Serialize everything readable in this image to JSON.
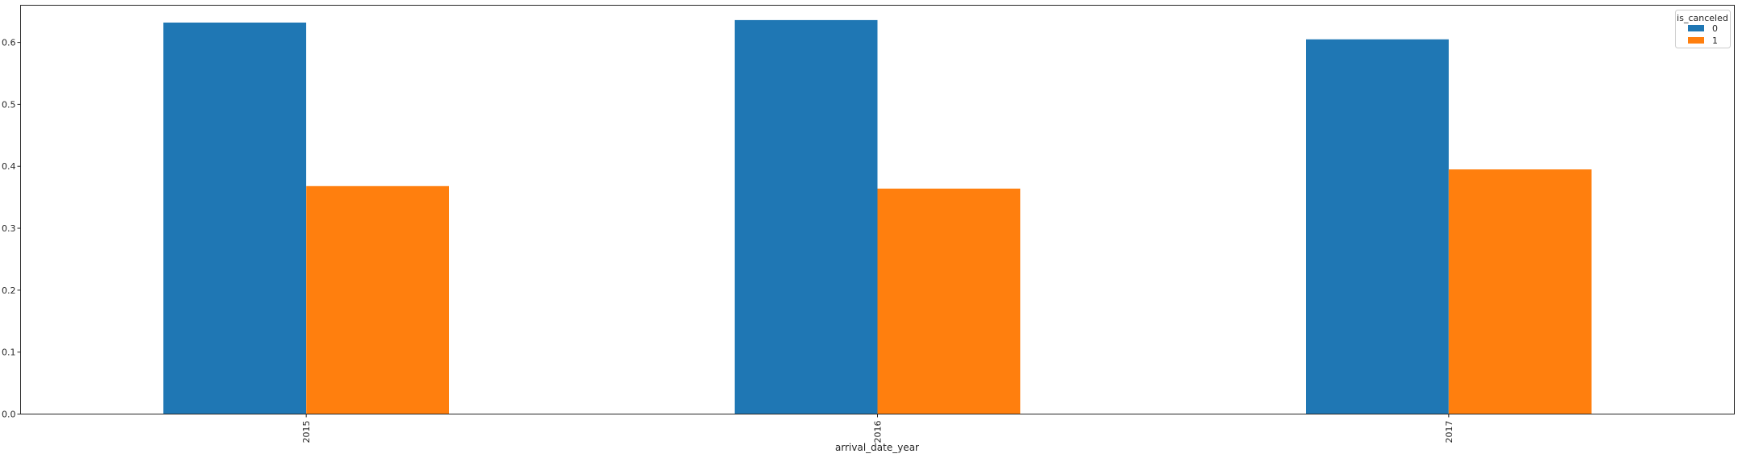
{
  "chart_data": {
    "type": "bar",
    "categories": [
      "2015",
      "2016",
      "2017"
    ],
    "series": [
      {
        "name": "0",
        "values": [
          0.632,
          0.636,
          0.605
        ],
        "color": "#1f77b4"
      },
      {
        "name": "1",
        "values": [
          0.368,
          0.364,
          0.395
        ],
        "color": "#ff7f0e"
      }
    ],
    "xlabel": "arrival_date_year",
    "ylabel": "",
    "ylim": [
      0,
      0.66
    ],
    "yticks": [
      "0.0",
      "0.1",
      "0.2",
      "0.3",
      "0.4",
      "0.5",
      "0.6"
    ],
    "legend": {
      "title": "is_canceled",
      "placement": "top-right"
    },
    "grid": false
  }
}
